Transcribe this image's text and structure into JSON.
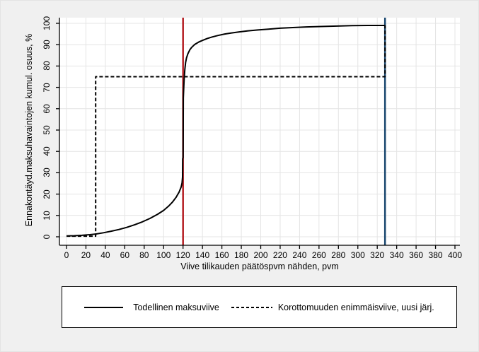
{
  "chart_data": {
    "type": "line",
    "title": "",
    "xlabel": "Viive tilikauden päätöspvm nähden, pvm",
    "ylabel": "Ennakontäyd.maksuhavaintojen kumul. osuus, %",
    "xlim": [
      0,
      400
    ],
    "ylim": [
      0,
      100
    ],
    "grid": true,
    "x_ticks": [
      0,
      20,
      40,
      60,
      80,
      100,
      120,
      140,
      160,
      180,
      200,
      220,
      240,
      260,
      280,
      300,
      320,
      340,
      360,
      380,
      400
    ],
    "y_ticks": [
      0,
      10,
      20,
      30,
      40,
      50,
      60,
      70,
      80,
      90,
      100
    ],
    "series": [
      {
        "name": "Todellinen maksuviive",
        "style": "solid",
        "color": "#000000",
        "width": 2,
        "points": [
          [
            0,
            0.4
          ],
          [
            8,
            0.5
          ],
          [
            16,
            0.7
          ],
          [
            24,
            1.0
          ],
          [
            30,
            1.3
          ],
          [
            38,
            1.9
          ],
          [
            46,
            2.6
          ],
          [
            54,
            3.4
          ],
          [
            62,
            4.4
          ],
          [
            70,
            5.6
          ],
          [
            78,
            7.0
          ],
          [
            86,
            8.6
          ],
          [
            94,
            10.6
          ],
          [
            100,
            12.4
          ],
          [
            105,
            14.3
          ],
          [
            109,
            16.2
          ],
          [
            113,
            18.6
          ],
          [
            116,
            21.0
          ],
          [
            118,
            23.3
          ],
          [
            119,
            25.2
          ],
          [
            119.5,
            28.0
          ],
          [
            119.6,
            36.5
          ],
          [
            120.1,
            37.2
          ],
          [
            120.3,
            65.0
          ],
          [
            120.7,
            69.8
          ],
          [
            121.2,
            74.0
          ],
          [
            121.8,
            78.2
          ],
          [
            122.6,
            81.6
          ],
          [
            123.6,
            83.8
          ],
          [
            125,
            85.8
          ],
          [
            127,
            87.6
          ],
          [
            129,
            88.8
          ],
          [
            132,
            90.1
          ],
          [
            136,
            91.2
          ],
          [
            140,
            92.0
          ],
          [
            145,
            92.9
          ],
          [
            150,
            93.6
          ],
          [
            156,
            94.3
          ],
          [
            163,
            95.0
          ],
          [
            170,
            95.5
          ],
          [
            178,
            96.0
          ],
          [
            187,
            96.5
          ],
          [
            197,
            96.9
          ],
          [
            208,
            97.3
          ],
          [
            220,
            97.7
          ],
          [
            233,
            98.0
          ],
          [
            247,
            98.3
          ],
          [
            262,
            98.5
          ],
          [
            278,
            98.7
          ],
          [
            294,
            98.9
          ],
          [
            310,
            99.0
          ],
          [
            328,
            99.0
          ]
        ]
      },
      {
        "name": "Korottomuuden enimmäisviive, uusi järj.",
        "style": "dashed",
        "color": "#000000",
        "width": 2,
        "points": [
          [
            0,
            0.3
          ],
          [
            30,
            0.3
          ],
          [
            30,
            75
          ],
          [
            328,
            75
          ],
          [
            328,
            99
          ]
        ]
      }
    ],
    "reference_lines": [
      {
        "axis": "x",
        "value": 120,
        "color": "#b52025",
        "width": 2.5
      },
      {
        "axis": "x",
        "value": 328,
        "color": "#1a476f",
        "width": 2.5
      }
    ],
    "legend": {
      "position": "bottom",
      "items": [
        {
          "label": "Todellinen maksuviive",
          "style": "solid"
        },
        {
          "label": "Korottomuuden enimmäisviive, uusi järj.",
          "style": "dashed"
        }
      ]
    },
    "colors": {
      "figure_background": "#f0f0f0",
      "plot_background": "#ffffff",
      "grid": "#e4e4e4",
      "axis": "#000000",
      "red_reference": "#b52025",
      "navy_reference": "#1a476f"
    }
  }
}
